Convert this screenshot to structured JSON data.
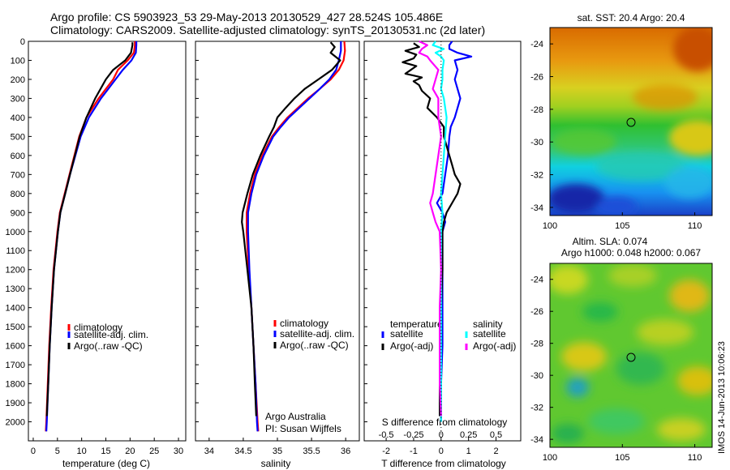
{
  "titles": {
    "line1": "Argo profile: CS 5903923_53 29-May-2013 20130529_427 28.524S 105.486E",
    "line2": "Climatology: CARS2009. Satellite-adjusted climatology: synTS_20130531.nc (2d later)"
  },
  "credit": {
    "org": "Argo Australia",
    "pi": "PI: Susan Wijffels"
  },
  "timestamp": "IMOS 14-Jun-2013 10:06:23",
  "colors": {
    "climatology": "#ff0000",
    "satellite": "#0000ff",
    "argo": "#000000",
    "salinity_satellite": "#00ffff",
    "salinity_argo": "#ff00ff"
  },
  "chart_data": [
    {
      "type": "line",
      "panel": "temperature",
      "xlabel": "temperature (deg C)",
      "ylabel": "",
      "xlim": [
        -1,
        31.5
      ],
      "ylim": [
        2100,
        0
      ],
      "xticks": [
        0,
        5,
        10,
        15,
        20,
        25,
        30
      ],
      "yticks": [
        0,
        100,
        200,
        300,
        400,
        500,
        600,
        700,
        800,
        900,
        1000,
        1100,
        1200,
        1300,
        1400,
        1500,
        1600,
        1700,
        1800,
        1900,
        2000
      ],
      "legend": [
        "climatology",
        "satellite-adj. clim.",
        "Argo(..raw -QC)"
      ],
      "series": [
        {
          "name": "climatology",
          "y": [
            0,
            20,
            60,
            100,
            150,
            200,
            300,
            400,
            500,
            600,
            700,
            800,
            900,
            1000,
            1200,
            1400,
            1600,
            1800,
            2000,
            2050
          ],
          "x": [
            21,
            21,
            20.8,
            19.5,
            17.5,
            16.5,
            13.5,
            11,
            9.5,
            8.5,
            7.5,
            6.5,
            5.5,
            5,
            4.2,
            3.7,
            3.3,
            3,
            2.7,
            2.6
          ]
        },
        {
          "name": "satellite-adj. clim.",
          "y": [
            0,
            20,
            60,
            100,
            150,
            200,
            300,
            400,
            500,
            600,
            700,
            800,
            900,
            1000,
            1200,
            1400,
            1600,
            1800,
            2000,
            2050
          ],
          "x": [
            21.3,
            21.3,
            21.2,
            20.3,
            18.5,
            17,
            14,
            11.5,
            9.8,
            8.7,
            7.6,
            6.6,
            5.6,
            5.1,
            4.3,
            3.8,
            3.4,
            3.1,
            2.8,
            2.7
          ]
        },
        {
          "name": "Argo(..raw -QC)",
          "y": [
            5,
            20,
            60,
            100,
            150,
            200,
            300,
            400,
            500,
            600,
            700,
            800,
            900,
            1000,
            1200,
            1400,
            1600,
            1800,
            1970
          ],
          "x": [
            20.5,
            20.5,
            20.2,
            19,
            16.5,
            15,
            12.8,
            11,
            9.6,
            8.6,
            7.6,
            6.6,
            5.6,
            5.1,
            4.3,
            3.8,
            3.4,
            3.1,
            2.8
          ]
        }
      ]
    },
    {
      "type": "line",
      "panel": "salinity",
      "xlabel": "salinity",
      "ylabel": "",
      "xlim": [
        33.8,
        36.2
      ],
      "ylim": [
        2100,
        0
      ],
      "xticks": [
        34,
        34.5,
        35,
        35.5,
        36
      ],
      "legend": [
        "climatology",
        "satellite-adj. clim.",
        "Argo(..raw -QC)"
      ],
      "series": [
        {
          "name": "climatology",
          "y": [
            0,
            50,
            100,
            150,
            200,
            250,
            300,
            350,
            400,
            450,
            500,
            600,
            700,
            800,
            900,
            1000,
            1200,
            1400,
            1600,
            1800,
            2000,
            2050
          ],
          "x": [
            35.98,
            35.99,
            35.97,
            35.9,
            35.78,
            35.62,
            35.45,
            35.3,
            35.15,
            35.03,
            34.92,
            34.78,
            34.67,
            34.6,
            34.55,
            34.55,
            34.58,
            34.62,
            34.65,
            34.68,
            34.71,
            34.72
          ]
        },
        {
          "name": "satellite-adj. clim.",
          "y": [
            0,
            50,
            100,
            150,
            200,
            250,
            300,
            350,
            400,
            450,
            500,
            600,
            700,
            800,
            900,
            1000,
            1200,
            1400,
            1600,
            1800,
            2000,
            2050
          ],
          "x": [
            35.93,
            35.93,
            35.9,
            35.86,
            35.76,
            35.62,
            35.47,
            35.32,
            35.17,
            35.05,
            34.94,
            34.8,
            34.69,
            34.62,
            34.57,
            34.57,
            34.59,
            34.62,
            34.65,
            34.68,
            34.7,
            34.71
          ]
        },
        {
          "name": "Argo(..raw -QC)",
          "y": [
            5,
            30,
            60,
            100,
            150,
            200,
            250,
            300,
            350,
            400,
            450,
            500,
            600,
            700,
            800,
            900,
            950,
            1000,
            1200,
            1400,
            1600,
            1800,
            1970
          ],
          "x": [
            35.78,
            35.84,
            35.78,
            35.92,
            35.8,
            35.6,
            35.4,
            35.25,
            35.12,
            35,
            34.95,
            34.88,
            34.75,
            34.64,
            34.56,
            34.49,
            34.48,
            34.5,
            34.56,
            34.62,
            34.65,
            34.67,
            34.69
          ]
        }
      ]
    },
    {
      "type": "line",
      "panel": "differences",
      "xlabel": "T difference from climatology",
      "xlabel_top": "S difference from climatology",
      "xlim": [
        -2.8,
        2.9
      ],
      "ylim": [
        2100,
        0
      ],
      "xticks": [
        -2,
        -1,
        0,
        1,
        2
      ],
      "top_ticks": [
        "-0.5",
        "-0.25",
        "0",
        "0.25",
        "0.5"
      ],
      "legend_headers": [
        "temperature",
        "salinity"
      ],
      "legend": [
        "satellite",
        "Argo(-adj)",
        "satellite",
        "Argo(-adj)"
      ],
      "series": [
        {
          "name": "satellite",
          "quantity": "temperature",
          "y": [
            0,
            20,
            40,
            60,
            80,
            100,
            150,
            200,
            250,
            300,
            350,
            400,
            450,
            500,
            600,
            700,
            800,
            850,
            900,
            950,
            1000,
            1200,
            1400,
            1600,
            1800,
            2000
          ],
          "x": [
            0.4,
            0.3,
            0.3,
            0.6,
            1.1,
            0.5,
            0.6,
            0.5,
            0.6,
            0.7,
            0.6,
            0.5,
            0.35,
            0.3,
            0.25,
            0.15,
            0.05,
            -0.15,
            0.05,
            0.15,
            0.05,
            0.05,
            0.05,
            0.05,
            0.0,
            0.0
          ]
        },
        {
          "name": "Argo(-adj)",
          "quantity": "temperature",
          "y": [
            10,
            30,
            50,
            70,
            90,
            110,
            130,
            150,
            170,
            190,
            210,
            230,
            260,
            300,
            350,
            400,
            450,
            500,
            550,
            600,
            650,
            700,
            750,
            800,
            850,
            900,
            950,
            1000,
            1200,
            1400,
            1600,
            1800,
            1970
          ],
          "x": [
            -1.0,
            -0.8,
            -1.3,
            -0.9,
            -1.0,
            -1.4,
            -0.9,
            -1.1,
            -1.3,
            -0.7,
            -1.0,
            -0.8,
            -0.7,
            -0.4,
            -0.5,
            -0.15,
            0.1,
            0.1,
            0.2,
            0.3,
            0.4,
            0.5,
            0.7,
            0.6,
            0.4,
            0.2,
            0.1,
            0.05,
            0.05,
            0.0,
            0.0,
            -0.05,
            -0.05
          ]
        },
        {
          "name": "satellite",
          "quantity": "salinity",
          "y": [
            0,
            20,
            40,
            60,
            80,
            100,
            150,
            200,
            250,
            300,
            400,
            500,
            600,
            700,
            800,
            900,
            1000,
            1200,
            1400,
            1600,
            1800,
            2000
          ],
          "x": [
            -0.2,
            -0.3,
            0.1,
            -0.2,
            0.0,
            0.1,
            0.05,
            0.05,
            0.0,
            0.1,
            0.2,
            0.15,
            0.1,
            0.05,
            0.0,
            0.05,
            0.0,
            0.0,
            0.0,
            0.0,
            0.0,
            0.0
          ]
        },
        {
          "name": "Argo(-adj)",
          "quantity": "salinity",
          "y": [
            0,
            20,
            40,
            60,
            80,
            100,
            150,
            200,
            250,
            300,
            350,
            400,
            500,
            600,
            700,
            800,
            850,
            900,
            950,
            1000,
            1200,
            1400,
            1600,
            1800,
            1970
          ],
          "x": [
            -0.8,
            -0.5,
            -0.7,
            -0.8,
            -0.5,
            -0.4,
            -0.1,
            -0.2,
            -0.3,
            -0.1,
            -0.1,
            -0.1,
            0.0,
            -0.1,
            -0.2,
            -0.3,
            -0.4,
            -0.3,
            -0.2,
            -0.05,
            0.0,
            -0.05,
            -0.05,
            -0.05,
            0.0
          ]
        }
      ]
    },
    {
      "type": "heatmap",
      "panel": "sst_map",
      "title": "sat. SST: 20.4 Argo: 20.4",
      "xlim": [
        100,
        111.2
      ],
      "ylim": [
        -34.5,
        -23
      ],
      "xticks": [
        100,
        105,
        110
      ],
      "yticks": [
        -24,
        -26,
        -28,
        -30,
        -32,
        -34
      ],
      "marker": {
        "lon": 105.486,
        "lat": -28.524
      }
    },
    {
      "type": "heatmap",
      "panel": "sla_map",
      "title_line1": "Altim. SLA: 0.074",
      "title_line2": "Argo h1000: 0.048 h2000: 0.067",
      "xlim": [
        100,
        111.2
      ],
      "ylim": [
        -34.5,
        -23
      ],
      "xticks": [
        100,
        105,
        110
      ],
      "yticks": [
        -24,
        -26,
        -28,
        -30,
        -32,
        -34
      ],
      "marker": {
        "lon": 105.486,
        "lat": -28.524
      }
    }
  ]
}
